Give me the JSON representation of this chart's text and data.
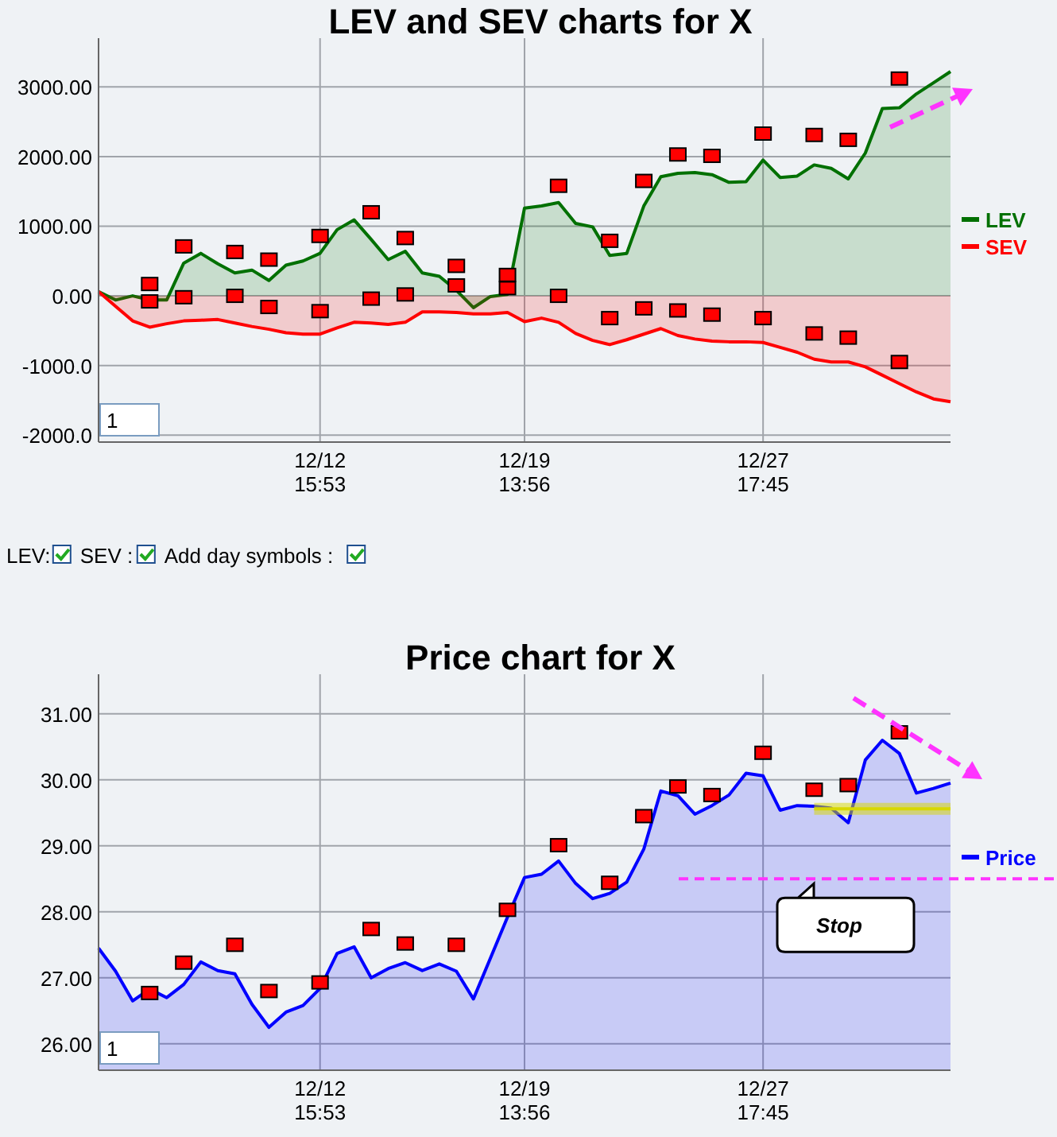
{
  "chart_data": [
    {
      "type": "area",
      "title": "LEV and SEV charts for X",
      "categories": [
        null,
        null,
        null,
        null,
        null,
        null,
        null,
        null,
        null,
        null,
        null,
        null,
        null,
        "12/12\n15:53",
        null,
        null,
        null,
        null,
        null,
        null,
        null,
        null,
        null,
        null,
        null,
        "12/19\n13:56",
        null,
        null,
        null,
        null,
        null,
        null,
        null,
        null,
        null,
        null,
        null,
        null,
        null,
        "12/27\n17:45",
        null,
        null,
        null,
        null,
        null,
        null,
        null,
        null,
        null,
        null,
        null
      ],
      "ylim": [
        -2100,
        3700
      ],
      "yticks": [
        {
          "value": -2000,
          "label": "-2000.0"
        },
        {
          "value": -1000,
          "label": "-1000.0"
        },
        {
          "value": 0,
          "label": "0.00"
        },
        {
          "value": 1000,
          "label": "1000.00"
        },
        {
          "value": 2000,
          "label": "2000.00"
        },
        {
          "value": 3000,
          "label": "3000.00"
        }
      ],
      "grid": true,
      "legend": "right",
      "annotations": [
        "1",
        "LEV:",
        "SEV :",
        "Add day symbols :"
      ],
      "series": [
        {
          "name": "LEV",
          "color": "#007000",
          "values": [
            60,
            -60,
            0,
            -60,
            -60,
            470,
            610,
            460,
            330,
            370,
            220,
            440,
            500,
            610,
            950,
            1090,
            810,
            520,
            640,
            330,
            280,
            80,
            -170,
            -10,
            20,
            1260,
            1290,
            1340,
            1040,
            990,
            580,
            610,
            1290,
            1710,
            1760,
            1770,
            1740,
            1630,
            1640,
            1950,
            1700,
            1720,
            1880,
            1830,
            1680,
            2050,
            2690,
            2700,
            2900,
            3060,
            3220
          ]
        },
        {
          "name": "SEV",
          "color": "#ff0000",
          "values": [
            60,
            -150,
            -360,
            -450,
            -400,
            -360,
            -350,
            -340,
            -390,
            -440,
            -480,
            -530,
            -550,
            -550,
            -460,
            -380,
            -390,
            -410,
            -380,
            -230,
            -230,
            -240,
            -260,
            -260,
            -240,
            -370,
            -320,
            -380,
            -540,
            -640,
            -700,
            -630,
            -550,
            -470,
            -570,
            -620,
            -650,
            -660,
            -660,
            -670,
            -740,
            -810,
            -910,
            -950,
            -950,
            -1020,
            -1140,
            -1260,
            -1380,
            -1480,
            -1520
          ]
        },
        {
          "type": "scatter",
          "marker": "square",
          "color": "#ff0000",
          "values": [
            null,
            null,
            null,
            170,
            null,
            710,
            null,
            null,
            630,
            null,
            520,
            null,
            null,
            860,
            null,
            null,
            1200,
            null,
            830,
            null,
            null,
            430,
            null,
            null,
            300,
            null,
            null,
            1580,
            null,
            null,
            790,
            null,
            1650,
            null,
            2030,
            null,
            2010,
            null,
            null,
            2330,
            null,
            null,
            2310,
            null,
            2240,
            null,
            null,
            3120,
            null,
            null,
            null
          ]
        },
        {
          "type": "scatter",
          "marker": "square",
          "color": "#ff0000",
          "values": [
            null,
            null,
            null,
            -80,
            null,
            -20,
            null,
            null,
            0,
            null,
            -160,
            null,
            null,
            -220,
            null,
            null,
            -40,
            null,
            20,
            null,
            null,
            150,
            null,
            null,
            110,
            null,
            null,
            0,
            null,
            null,
            -320,
            null,
            -180,
            null,
            -210,
            null,
            -270,
            null,
            null,
            -320,
            null,
            null,
            -540,
            null,
            -600,
            null,
            null,
            -950,
            null,
            null,
            null
          ]
        }
      ]
    },
    {
      "type": "area",
      "title": "Price chart for X",
      "categories": [
        null,
        null,
        null,
        null,
        null,
        null,
        null,
        null,
        null,
        null,
        null,
        null,
        null,
        "12/12\n15:53",
        null,
        null,
        null,
        null,
        null,
        null,
        null,
        null,
        null,
        null,
        null,
        "12/19\n13:56",
        null,
        null,
        null,
        null,
        null,
        null,
        null,
        null,
        null,
        null,
        null,
        null,
        null,
        "12/27\n17:45",
        null,
        null,
        null,
        null,
        null,
        null,
        null,
        null,
        null,
        null,
        null
      ],
      "ylim": [
        25.6,
        31.6
      ],
      "yticks": [
        {
          "value": 26,
          "label": "26.00"
        },
        {
          "value": 27,
          "label": "27.00"
        },
        {
          "value": 28,
          "label": "28.00"
        },
        {
          "value": 29,
          "label": "29.00"
        },
        {
          "value": 30,
          "label": "30.00"
        },
        {
          "value": 31,
          "label": "31.00"
        }
      ],
      "grid": true,
      "legend": "right",
      "annotations": [
        "1"
      ],
      "ref_lines": [
        {
          "axis": "y",
          "value": 28.5,
          "label": "Stop",
          "color": "#ff33ff",
          "line_style": "dashed"
        }
      ],
      "series": [
        {
          "type": "line",
          "color": "#d8d800",
          "values": [
            null,
            null,
            null,
            null,
            null,
            null,
            null,
            null,
            null,
            null,
            null,
            null,
            null,
            null,
            null,
            null,
            null,
            null,
            null,
            null,
            null,
            null,
            null,
            null,
            null,
            null,
            null,
            null,
            null,
            null,
            null,
            null,
            null,
            null,
            null,
            null,
            null,
            null,
            null,
            null,
            null,
            null,
            29.56,
            29.56,
            29.56,
            29.56,
            29.56,
            29.56,
            29.56,
            29.56,
            29.56
          ],
          "lower": [
            null,
            null,
            null,
            null,
            null,
            null,
            null,
            null,
            null,
            null,
            null,
            null,
            null,
            null,
            null,
            null,
            null,
            null,
            null,
            null,
            null,
            null,
            null,
            null,
            null,
            null,
            null,
            null,
            null,
            null,
            null,
            null,
            null,
            null,
            null,
            null,
            null,
            null,
            null,
            null,
            null,
            null,
            29.47,
            29.47,
            29.47,
            29.47,
            29.47,
            29.47,
            29.47,
            29.47,
            29.47
          ],
          "upper": [
            null,
            null,
            null,
            null,
            null,
            null,
            null,
            null,
            null,
            null,
            null,
            null,
            null,
            null,
            null,
            null,
            null,
            null,
            null,
            null,
            null,
            null,
            null,
            null,
            null,
            null,
            null,
            null,
            null,
            null,
            null,
            null,
            null,
            null,
            null,
            null,
            null,
            null,
            null,
            null,
            null,
            null,
            29.65,
            29.65,
            29.65,
            29.65,
            29.65,
            29.65,
            29.65,
            29.65,
            29.65
          ]
        },
        {
          "name": "Price",
          "color": "#0000ff",
          "values": [
            27.45,
            27.1,
            26.65,
            26.83,
            26.7,
            26.9,
            27.24,
            27.11,
            27.06,
            26.6,
            26.25,
            26.48,
            26.58,
            26.84,
            27.37,
            27.47,
            27,
            27.14,
            27.23,
            27.11,
            27.21,
            27.1,
            26.68,
            27.3,
            27.92,
            28.52,
            28.57,
            28.77,
            28.43,
            28.2,
            28.28,
            28.45,
            28.95,
            29.83,
            29.76,
            29.48,
            29.61,
            29.77,
            30.1,
            30.06,
            29.54,
            29.61,
            29.6,
            29.57,
            29.35,
            30.3,
            30.6,
            30.4,
            29.8,
            29.87,
            29.95
          ]
        },
        {
          "type": "scatter",
          "marker": "square",
          "color": "#ff0000",
          "values": [
            null,
            null,
            null,
            26.77,
            null,
            27.23,
            null,
            null,
            27.5,
            null,
            26.8,
            null,
            null,
            26.93,
            null,
            null,
            27.74,
            null,
            27.52,
            null,
            null,
            27.5,
            null,
            null,
            28.03,
            null,
            null,
            29.01,
            null,
            null,
            28.44,
            null,
            29.45,
            null,
            29.9,
            null,
            29.77,
            null,
            null,
            30.41,
            null,
            null,
            29.85,
            null,
            29.92,
            null,
            null,
            30.72,
            null,
            null,
            null
          ]
        }
      ]
    }
  ]
}
